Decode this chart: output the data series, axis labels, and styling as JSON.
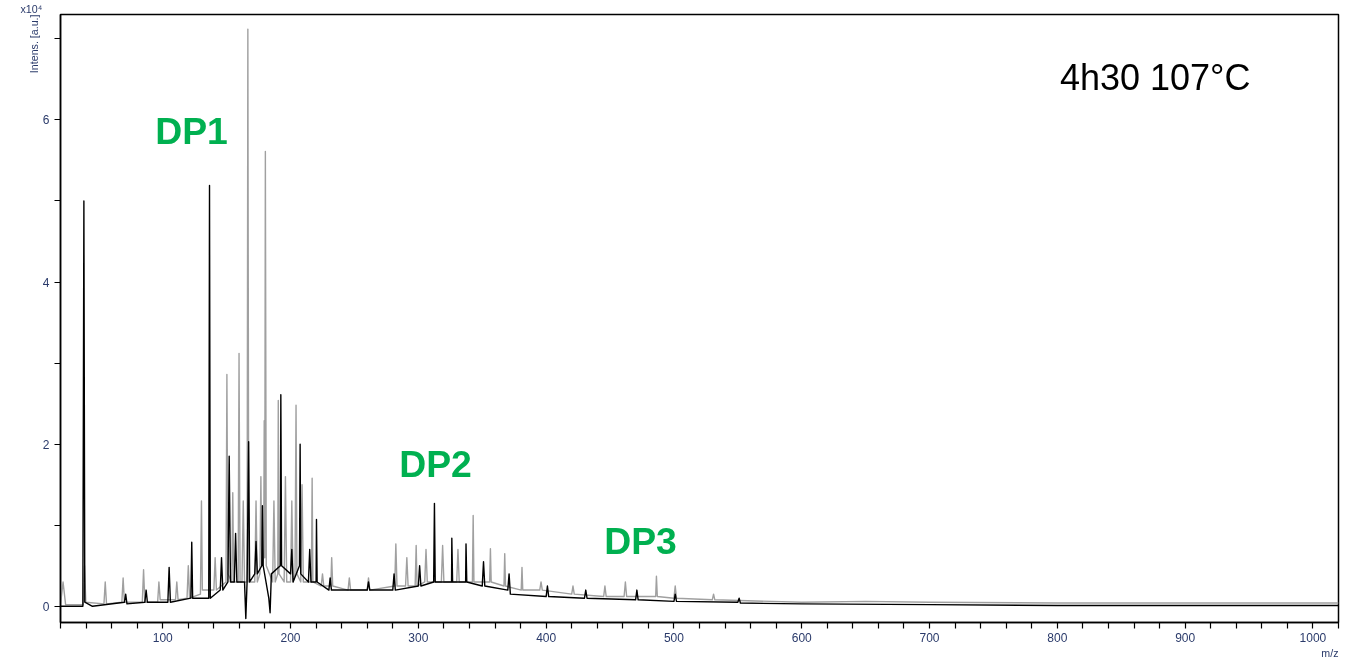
{
  "chart_data": {
    "type": "line",
    "title": "4h30 107°C",
    "xlabel": "m/z",
    "ylabel": "Intens. [a.u.]",
    "annotations": [
      "x10⁴",
      "DP1",
      "DP2",
      "DP3"
    ],
    "xlim": [
      20,
      1020
    ],
    "ylim": [
      -0.2,
      7.3
    ],
    "xticks": [
      {
        "value": 20,
        "label": null
      },
      {
        "value": 40,
        "label": null
      },
      {
        "value": 60,
        "label": null
      },
      {
        "value": 80,
        "label": null
      },
      100,
      {
        "value": 120,
        "label": null
      },
      {
        "value": 140,
        "label": null
      },
      {
        "value": 160,
        "label": null
      },
      {
        "value": 180,
        "label": null
      },
      200,
      {
        "value": 220,
        "label": null
      },
      {
        "value": 240,
        "label": null
      },
      {
        "value": 260,
        "label": null
      },
      {
        "value": 280,
        "label": null
      },
      300,
      {
        "value": 320,
        "label": null
      },
      {
        "value": 340,
        "label": null
      },
      {
        "value": 360,
        "label": null
      },
      {
        "value": 380,
        "label": null
      },
      400,
      {
        "value": 420,
        "label": null
      },
      {
        "value": 440,
        "label": null
      },
      {
        "value": 460,
        "label": null
      },
      {
        "value": 480,
        "label": null
      },
      500,
      {
        "value": 520,
        "label": null
      },
      {
        "value": 540,
        "label": null
      },
      {
        "value": 560,
        "label": null
      },
      {
        "value": 580,
        "label": null
      },
      600,
      {
        "value": 620,
        "label": null
      },
      {
        "value": 640,
        "label": null
      },
      {
        "value": 660,
        "label": null
      },
      {
        "value": 680,
        "label": null
      },
      700,
      {
        "value": 720,
        "label": null
      },
      {
        "value": 740,
        "label": null
      },
      {
        "value": 760,
        "label": null
      },
      {
        "value": 780,
        "label": null
      },
      800,
      {
        "value": 820,
        "label": null
      },
      {
        "value": 840,
        "label": null
      },
      {
        "value": 860,
        "label": null
      },
      {
        "value": 880,
        "label": null
      },
      900,
      {
        "value": 920,
        "label": null
      },
      {
        "value": 940,
        "label": null
      },
      {
        "value": 960,
        "label": null
      },
      {
        "value": 980,
        "label": null
      },
      1000,
      {
        "value": 1020,
        "label": null
      }
    ],
    "yticks": [
      0,
      {
        "value": 1,
        "label": null
      },
      2,
      {
        "value": 3,
        "label": null
      },
      4,
      {
        "value": 5,
        "label": null
      },
      6,
      {
        "value": 7,
        "label": null
      }
    ],
    "grid": false,
    "line_style": "solid",
    "marker": "none",
    "series": [
      {
        "color": "#a0a0a0",
        "x": [
          20,
          22,
          24,
          37.8,
          38.8,
          39.8,
          54,
          55,
          56,
          68,
          69,
          70,
          84,
          85,
          86,
          96,
          97,
          98,
          110,
          111,
          112,
          119,
          120,
          121,
          129.5,
          130.3,
          131,
          140,
          141,
          142,
          149.5,
          150.2,
          151,
          154,
          154.8,
          155.5,
          159,
          159.7,
          160.5,
          162,
          163,
          164,
          166,
          166.6,
          167.3,
          172,
          173,
          174,
          176,
          176.8,
          177.5,
          179,
          179.4,
          179.8,
          180.3,
          181,
          186,
          187,
          188,
          190,
          190.4,
          191,
          195,
          196,
          197,
          200,
          201,
          202,
          203.5,
          204.3,
          205,
          208,
          209,
          210,
          216.3,
          216.9,
          217.5,
          224,
          225,
          226,
          231.5,
          232.2,
          233,
          245,
          246,
          247,
          260,
          261,
          262,
          281.5,
          282.4,
          283.3,
          290,
          291,
          292,
          297.5,
          298.3,
          299,
          305,
          306,
          307,
          318,
          319,
          320,
          330,
          331,
          332,
          342.3,
          342.9,
          343.5,
          355.8,
          356.4,
          357,
          367,
          367.6,
          368.2,
          380.5,
          381.1,
          381.7,
          395,
          396,
          397,
          420,
          421,
          422,
          445,
          446,
          447,
          461,
          462,
          463,
          485.7,
          486.3,
          487,
          500,
          501,
          502,
          530,
          531,
          532,
          600,
          650,
          700,
          800,
          900,
          1020
        ],
        "values": [
          0.02,
          0.3,
          0.02,
          0.02,
          0.5,
          0.05,
          0.03,
          0.3,
          0.03,
          0.05,
          0.35,
          0.05,
          0.05,
          0.45,
          0.05,
          0.05,
          0.3,
          0.08,
          0.08,
          0.3,
          0.08,
          0.1,
          0.5,
          0.1,
          0.15,
          1.3,
          0.2,
          0.2,
          0.6,
          0.2,
          0.3,
          2.86,
          0.4,
          0.3,
          1.4,
          0.3,
          0.3,
          3.12,
          0.3,
          0.3,
          1.3,
          0.3,
          0.3,
          7.12,
          0.3,
          0.3,
          1.3,
          0.3,
          0.4,
          1.6,
          0.5,
          0.6,
          2.29,
          0.6,
          5.61,
          0.5,
          0.3,
          1.3,
          0.3,
          0.4,
          2.54,
          0.4,
          0.3,
          1.6,
          0.3,
          0.3,
          1.3,
          0.3,
          0.4,
          2.48,
          0.4,
          0.3,
          1.5,
          0.3,
          0.3,
          1.58,
          0.3,
          0.25,
          0.4,
          0.25,
          0.25,
          0.6,
          0.25,
          0.2,
          0.35,
          0.2,
          0.2,
          0.35,
          0.2,
          0.25,
          0.77,
          0.25,
          0.25,
          0.6,
          0.25,
          0.25,
          0.75,
          0.25,
          0.3,
          0.7,
          0.3,
          0.3,
          0.75,
          0.3,
          0.3,
          0.7,
          0.3,
          0.3,
          1.12,
          0.3,
          0.3,
          0.71,
          0.3,
          0.25,
          0.65,
          0.25,
          0.2,
          0.48,
          0.2,
          0.2,
          0.3,
          0.2,
          0.15,
          0.25,
          0.15,
          0.12,
          0.25,
          0.12,
          0.12,
          0.3,
          0.12,
          0.12,
          0.37,
          0.12,
          0.1,
          0.25,
          0.1,
          0.08,
          0.15,
          0.08,
          0.05,
          0.06,
          0.05,
          0.04,
          0.04,
          0.04
        ]
      },
      {
        "color": "#000000",
        "x": [
          20,
          37.5,
          38.3,
          39,
          45,
          70,
          71,
          72,
          86,
          87,
          88,
          104,
          105,
          106,
          122,
          122.7,
          123.4,
          136,
          136.6,
          137.2,
          145,
          146,
          147,
          151,
          152,
          153,
          156,
          157,
          158,
          164,
          165,
          166,
          167.2,
          168,
          172,
          173,
          174,
          177.5,
          178,
          178.6,
          183,
          184,
          185,
          192,
          192.4,
          193,
          200,
          201,
          202,
          207,
          207.5,
          208,
          214,
          215,
          216,
          220,
          220.3,
          220.8,
          230,
          231,
          232,
          260,
          261,
          262,
          280,
          281,
          282,
          300,
          301,
          302,
          312,
          312.6,
          313.2,
          326,
          326.2,
          326.8,
          337,
          337.3,
          337.9,
          350,
          351,
          352,
          370,
          371,
          372,
          400,
          401,
          402,
          430,
          431,
          432,
          470,
          471,
          472,
          500,
          501,
          502,
          550,
          551,
          552,
          600,
          700,
          800,
          1020
        ],
        "values": [
          0.0,
          0.0,
          5.0,
          0.05,
          0.0,
          0.05,
          0.15,
          0.03,
          0.05,
          0.2,
          0.05,
          0.05,
          0.48,
          0.05,
          0.1,
          0.79,
          0.1,
          0.1,
          5.19,
          0.1,
          0.2,
          0.6,
          0.2,
          0.3,
          1.85,
          0.3,
          0.3,
          0.9,
          0.3,
          0.3,
          -0.15,
          0.3,
          2.03,
          0.3,
          0.4,
          0.8,
          0.4,
          0.5,
          1.24,
          0.5,
          0.1,
          -0.08,
          0.4,
          0.5,
          2.61,
          0.5,
          0.4,
          0.7,
          0.3,
          0.5,
          2.0,
          0.4,
          0.3,
          0.7,
          0.3,
          0.3,
          1.07,
          0.3,
          0.2,
          0.35,
          0.2,
          0.2,
          0.3,
          0.2,
          0.2,
          0.4,
          0.2,
          0.25,
          0.5,
          0.25,
          0.3,
          1.27,
          0.3,
          0.3,
          0.84,
          0.3,
          0.3,
          0.77,
          0.3,
          0.25,
          0.55,
          0.25,
          0.2,
          0.4,
          0.15,
          0.12,
          0.25,
          0.12,
          0.1,
          0.2,
          0.1,
          0.08,
          0.2,
          0.08,
          0.06,
          0.15,
          0.06,
          0.05,
          0.1,
          0.04,
          0.03,
          0.02,
          0.01,
          0.01
        ]
      }
    ]
  }
}
